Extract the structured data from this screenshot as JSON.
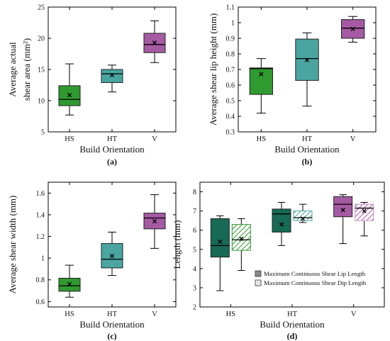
{
  "colors": {
    "green": "#2f9a2f",
    "darkgreen": "#176a55",
    "teal": "#4aa5a0",
    "purple": "#a65aa3",
    "lightpurple": "#c98fc6",
    "lighttealhatch": "#7bc4bd",
    "axis": "#000000"
  },
  "chart_data": [
    {
      "type": "box",
      "panel": "(a)",
      "xlabel": "Build Orientation",
      "ylabel_lines": [
        "Average  actual",
        "shear  area  (mm²)"
      ],
      "ylim": [
        5,
        25
      ],
      "yticks": [
        5,
        10,
        15,
        20,
        25
      ],
      "ytick_labels": [
        "5",
        "10",
        "15",
        "20",
        "25"
      ],
      "categories": [
        "HS",
        "HT",
        "V"
      ],
      "boxes": [
        {
          "category": "HS",
          "min": 7.7,
          "q1": 9.2,
          "median": 10.2,
          "q3": 12.4,
          "max": 15.9,
          "mean": 10.9,
          "color": "green"
        },
        {
          "category": "HT",
          "min": 11.4,
          "q1": 12.9,
          "median": 14.3,
          "q3": 15.0,
          "max": 15.7,
          "mean": 14.1,
          "color": "teal"
        },
        {
          "category": "V",
          "min": 16.1,
          "q1": 17.7,
          "median": 19.0,
          "q3": 20.8,
          "max": 22.8,
          "mean": 19.3,
          "color": "purple"
        }
      ]
    },
    {
      "type": "box",
      "panel": "(b)",
      "xlabel": "Build Orientation",
      "ylabel_lines": [
        "Average shear lip height (mm)"
      ],
      "ylim": [
        0.3,
        1.1
      ],
      "yticks": [
        0.3,
        0.4,
        0.5,
        0.6,
        0.7,
        0.8,
        0.9,
        1.0,
        1.1
      ],
      "ytick_labels": [
        "0.3",
        "0.4",
        "0.5",
        "0.6",
        "0.7",
        "0.8",
        "0.9",
        "1",
        "1.1"
      ],
      "categories": [
        "HS",
        "HT",
        "V"
      ],
      "boxes": [
        {
          "category": "HS",
          "min": 0.42,
          "q1": 0.54,
          "median": 0.705,
          "q3": 0.71,
          "max": 0.77,
          "mean": 0.67,
          "color": "green"
        },
        {
          "category": "HT",
          "min": 0.465,
          "q1": 0.63,
          "median": 0.77,
          "q3": 0.895,
          "max": 0.935,
          "mean": 0.76,
          "color": "teal"
        },
        {
          "category": "V",
          "min": 0.875,
          "q1": 0.9,
          "median": 0.965,
          "q3": 1.02,
          "max": 1.04,
          "mean": 0.96,
          "color": "purple"
        }
      ]
    },
    {
      "type": "box",
      "panel": "(c)",
      "xlabel": "Build Orientation",
      "ylabel_lines": [
        "Average shear width (mm)"
      ],
      "ylim": [
        0.55,
        1.7
      ],
      "yticks": [
        0.6,
        0.8,
        1.0,
        1.2,
        1.4,
        1.6
      ],
      "ytick_labels": [
        "0.6",
        "0.8",
        "1",
        "1.2",
        "1.4",
        "1.6"
      ],
      "categories": [
        "HS",
        "HT",
        "V"
      ],
      "boxes": [
        {
          "category": "HS",
          "min": 0.64,
          "q1": 0.695,
          "median": 0.745,
          "q3": 0.815,
          "max": 0.935,
          "mean": 0.76,
          "color": "green"
        },
        {
          "category": "HT",
          "min": 0.84,
          "q1": 0.91,
          "median": 0.99,
          "q3": 1.135,
          "max": 1.24,
          "mean": 1.02,
          "color": "teal"
        },
        {
          "category": "V",
          "min": 1.09,
          "q1": 1.27,
          "median": 1.37,
          "q3": 1.415,
          "max": 1.585,
          "mean": 1.34,
          "color": "purple"
        }
      ]
    },
    {
      "type": "box",
      "panel": "(d)",
      "xlabel": "Build Orientation",
      "ylabel_lines": [
        "Length (mm)"
      ],
      "ylim": [
        2,
        8.5
      ],
      "yticks": [
        2,
        3,
        4,
        5,
        6,
        7,
        8
      ],
      "ytick_labels": [
        "2",
        "3",
        "4",
        "5",
        "6",
        "7",
        "8"
      ],
      "categories": [
        "HS",
        "HT",
        "V"
      ],
      "series": [
        {
          "name": "Maximum Continuous Shear Lip Length",
          "style": "solid",
          "boxes": [
            {
              "category": "HS",
              "min": 2.85,
              "q1": 4.6,
              "median": 5.2,
              "q3": 6.6,
              "max": 6.75,
              "mean": 5.4,
              "color": "darkgreen"
            },
            {
              "category": "HT",
              "min": 5.2,
              "q1": 5.9,
              "median": 6.85,
              "q3": 7.1,
              "max": 7.45,
              "mean": 6.3,
              "color": "darkgreen"
            },
            {
              "category": "V",
              "min": 5.3,
              "q1": 6.7,
              "median": 7.35,
              "q3": 7.75,
              "max": 7.85,
              "mean": 7.05,
              "color": "purple"
            }
          ]
        },
        {
          "name": "Maximum Continuous Shear Dip Length",
          "style": "hatched",
          "boxes": [
            {
              "category": "HS",
              "min": 3.9,
              "q1": 4.95,
              "median": 5.5,
              "q3": 6.3,
              "max": 6.6,
              "mean": 5.55,
              "color": "green"
            },
            {
              "category": "HT",
              "min": 6.4,
              "q1": 6.5,
              "median": 6.65,
              "q3": 7.0,
              "max": 7.35,
              "mean": 6.6,
              "color": "teal"
            },
            {
              "category": "V",
              "min": 5.7,
              "q1": 6.5,
              "median": 7.15,
              "q3": 7.35,
              "max": 7.45,
              "mean": 7.0,
              "color": "lightpurple"
            }
          ]
        }
      ],
      "legend_position": "lower-right"
    }
  ]
}
